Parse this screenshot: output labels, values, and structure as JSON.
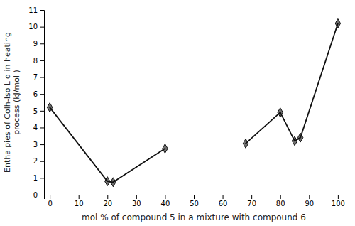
{
  "chart_data": {
    "type": "line",
    "xlabel": "mol % of compound 5 in a mixture with compound 6",
    "ylabel": "Enthalpies of Colh-Iso Liq in heating\nprocess (kJ/mol )",
    "series": [
      {
        "x": [
          0,
          20,
          22,
          40
        ],
        "values": [
          5.2,
          0.8,
          0.75,
          2.75
        ],
        "color": "#111111",
        "marker": "diamond"
      },
      {
        "x": [
          68,
          80,
          85,
          87,
          100
        ],
        "values": [
          3.05,
          4.9,
          3.2,
          3.4,
          10.2
        ],
        "color": "#111111",
        "marker": "diamond"
      }
    ],
    "xlim": [
      -2,
      102
    ],
    "ylim": [
      0,
      11
    ],
    "xticks": [
      0,
      10,
      20,
      30,
      40,
      50,
      60,
      70,
      80,
      90,
      100
    ],
    "yticks": [
      0,
      1,
      2,
      3,
      4,
      5,
      6,
      7,
      8,
      9,
      10,
      11
    ],
    "grid": false
  }
}
